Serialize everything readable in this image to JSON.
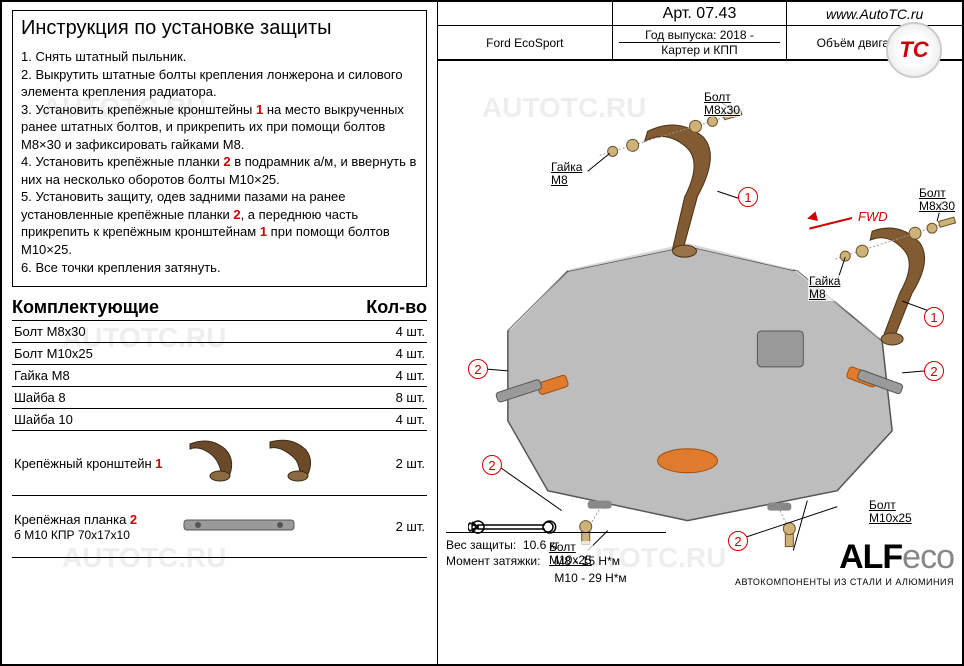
{
  "instructions": {
    "title": "Инструкция по установке защиты",
    "steps": [
      "1.   Снять штатный пыльник.",
      "2.   Выкрутить штатные болты крепления лонжерона и силового элемента крепления радиатора.",
      "3.   Установить крепёжные кронштейны <r>1</r> на место выкрученных ранее штатных болтов, и прикрепить их при помощи болтов М8×30 и зафиксировать гайками М8.",
      "4.   Установить крепёжные планки <r>2</r> в подрамник а/м, и ввернуть в них на несколько оборотов болты М10×25.",
      "5.   Установить защиту, одев задними пазами  на ранее установленные крепёжные планки <r>2</r>, а переднюю часть прикрепить к крепёжным кронштейнам <r>1</r> при помощи болтов М10×25.",
      "6.   Все точки крепления затянуть."
    ]
  },
  "components": {
    "header_name": "Комплектующие",
    "header_qty": "Кол-во",
    "rows": [
      {
        "name": "Болт М8х30",
        "qty": "4 шт."
      },
      {
        "name": "Болт М10х25",
        "qty": "4 шт."
      },
      {
        "name": "Гайка М8",
        "qty": "4 шт."
      },
      {
        "name": "Шайба 8",
        "qty": "8 шт."
      },
      {
        "name": "Шайба 10",
        "qty": "4 шт."
      }
    ],
    "bracket": {
      "name": "Крепёжный кронштейн ",
      "num": "1",
      "qty": "2 шт."
    },
    "plank": {
      "name": "Крепёжная планка ",
      "num": "2",
      "sub": "б М10 КПР 70х17х10",
      "qty": "2 шт."
    }
  },
  "header": {
    "cell_blank": "",
    "article": "Арт. 07.43",
    "site": "www.AutoTC.ru",
    "model": "Ford EcoSport",
    "year": "Год выпуска: 2018 -",
    "protect": "Картер и КПП",
    "engine": "Объём двигателя: all"
  },
  "diagram": {
    "labels": {
      "bolt_m8x30": "Болт\nМ8х30",
      "nut_m8": "Гайка\nМ8",
      "bolt_m10x25": "Болт\nМ10х25",
      "fwd": "FWD"
    },
    "colors": {
      "plate": "#bdbdbd",
      "plate_dark": "#9a9a9a",
      "bracket": "#825b33",
      "orange": "#e07b2e",
      "red": "#d00000",
      "bolt": "#a58a5a"
    }
  },
  "footer": {
    "weight_label": "Вес защиты:",
    "weight_value": "10.6 кг",
    "torque_label": "Момент затяжки:",
    "torque1": "М8 - 15 Н*м",
    "torque2": "М10 - 29 Н*м",
    "brand_main": "ALF",
    "brand_eco": "eco",
    "brand_sub": "АВТОКОМПОНЕНТЫ ИЗ СТАЛИ И АЛЮМИНИЯ"
  },
  "logo": "TC",
  "watermarks": [
    "AUTOTC.RU",
    "AUTOTC.RU",
    "AUTOTC.RU",
    "AUTOTC.RU",
    "AUTOTC.RU",
    "AUTOTC.RU"
  ]
}
